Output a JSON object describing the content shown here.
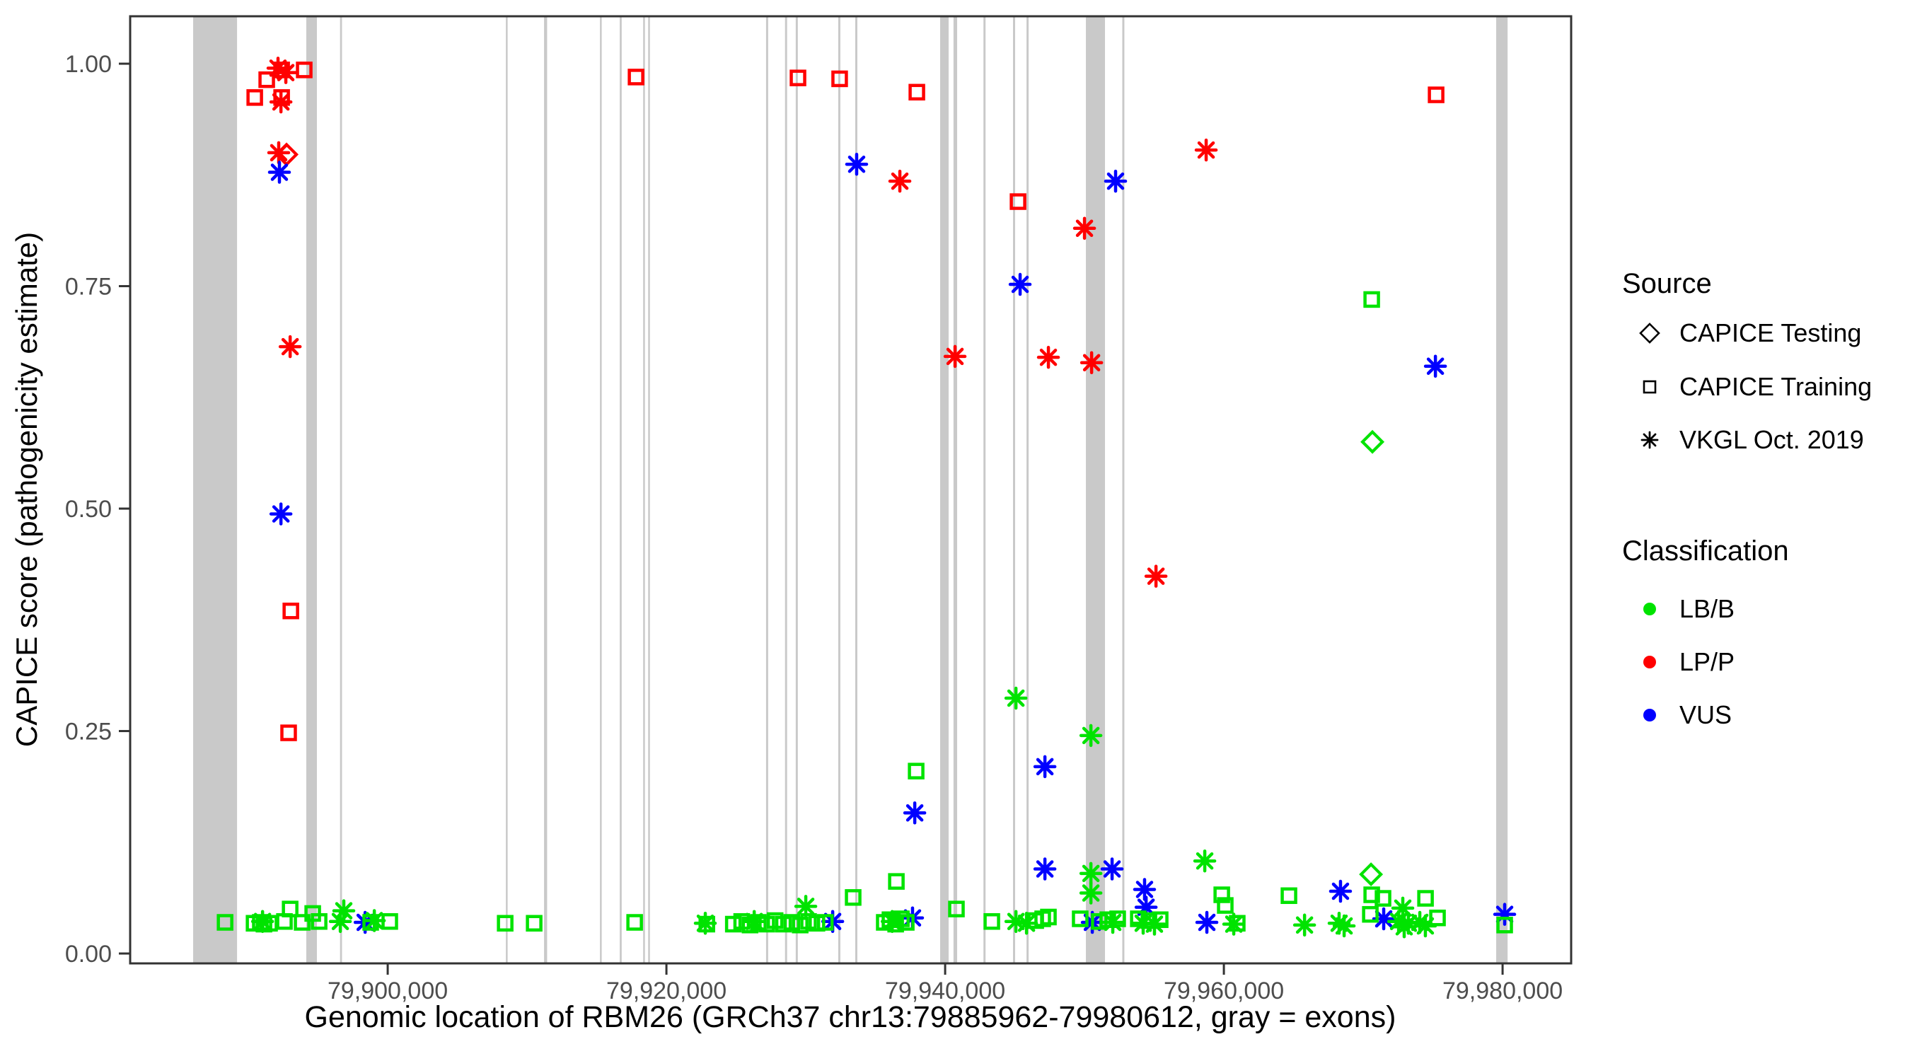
{
  "colors": {
    "lbb": "#00E300",
    "lpp": "#FF0000",
    "vus": "#0000FF",
    "exon": "#C9C9C9",
    "axis_text": "#4d4d4d",
    "panel_border": "#333333"
  },
  "legend": {
    "source_title": "Source",
    "source_items": [
      {
        "label": "CAPICE Testing",
        "shape": "diamond"
      },
      {
        "label": "CAPICE Training",
        "shape": "square"
      },
      {
        "label": "VKGL Oct. 2019",
        "shape": "asterisk"
      }
    ],
    "classification_title": "Classification",
    "classification_items": [
      {
        "label": "LB/B",
        "color_key": "lbb"
      },
      {
        "label": "LP/P",
        "color_key": "lpp"
      },
      {
        "label": "VUS",
        "color_key": "vus"
      }
    ]
  },
  "chart_data": {
    "type": "scatter",
    "title": "",
    "xlabel": "Genomic location of RBM26 (GRCh37 chr13:79885962-79980612, gray = exons)",
    "ylabel": "CAPICE score (pathogenicity estimate)",
    "x_ticks": [
      79900000,
      79920000,
      79940000,
      79960000,
      79980000
    ],
    "x_tick_labels": [
      "79,900,000",
      "79,920,000",
      "79,940,000",
      "79,960,000",
      "79,980,000"
    ],
    "y_ticks": [
      0.0,
      0.25,
      0.5,
      0.75,
      1.0
    ],
    "y_tick_labels": [
      "0.00",
      "0.25",
      "0.50",
      "0.75",
      "1.00"
    ],
    "x_range": [
      79881520,
      79984920
    ],
    "y_range": [
      -0.0111,
      1.0533
    ],
    "grid": false,
    "legend_position": "right",
    "exons_note": "gray vertical bands = exons, genomic start/end pairs",
    "exons": [
      [
        79886040,
        79889190
      ],
      [
        79894160,
        79894920
      ],
      [
        79896580,
        79896720
      ],
      [
        79908480,
        79908580
      ],
      [
        79911220,
        79911440
      ],
      [
        79915230,
        79915330
      ],
      [
        79916650,
        79916790
      ],
      [
        79918330,
        79918440
      ],
      [
        79918690,
        79918800
      ],
      [
        79927150,
        79927300
      ],
      [
        79928510,
        79928660
      ],
      [
        79929280,
        79929430
      ],
      [
        79932330,
        79932480
      ],
      [
        79933550,
        79933700
      ],
      [
        79939640,
        79940250
      ],
      [
        79940600,
        79940860
      ],
      [
        79942750,
        79942900
      ],
      [
        79944870,
        79945020
      ],
      [
        79945840,
        79945990
      ],
      [
        79950100,
        79951470
      ],
      [
        79952710,
        79952860
      ],
      [
        79979540,
        79980360
      ]
    ],
    "points_format": [
      "genomic_position",
      "capice_score",
      "shape(source: diamond=CAPICE Testing, square=CAPICE Training, asterisk=VKGL Oct. 2019)",
      "classification"
    ],
    "points": [
      [
        79890460,
        0.962,
        "square",
        "LP/P"
      ],
      [
        79891320,
        0.982,
        "square",
        "LP/P"
      ],
      [
        79892130,
        0.995,
        "asterisk",
        "LP/P"
      ],
      [
        79892690,
        0.99,
        "asterisk",
        "LP/P"
      ],
      [
        79892390,
        0.993,
        "square",
        "LP/P"
      ],
      [
        79894010,
        0.993,
        "square",
        "LP/P"
      ],
      [
        79892390,
        0.962,
        "square",
        "LP/P"
      ],
      [
        79892340,
        0.957,
        "asterisk",
        "LP/P"
      ],
      [
        79892180,
        0.9,
        "asterisk",
        "LP/P"
      ],
      [
        79892740,
        0.898,
        "diamond",
        "LP/P"
      ],
      [
        79893000,
        0.682,
        "asterisk",
        "LP/P"
      ],
      [
        79893050,
        0.385,
        "square",
        "LP/P"
      ],
      [
        79892890,
        0.248,
        "square",
        "LP/P"
      ],
      [
        79917820,
        0.985,
        "square",
        "LP/P"
      ],
      [
        79929440,
        0.984,
        "square",
        "LP/P"
      ],
      [
        79932430,
        0.983,
        "square",
        "LP/P"
      ],
      [
        79937970,
        0.968,
        "square",
        "LP/P"
      ],
      [
        79936750,
        0.868,
        "asterisk",
        "LP/P"
      ],
      [
        79940710,
        0.671,
        "asterisk",
        "LP/P"
      ],
      [
        79945230,
        0.845,
        "square",
        "LP/P"
      ],
      [
        79950000,
        0.815,
        "asterisk",
        "LP/P"
      ],
      [
        79947410,
        0.67,
        "asterisk",
        "LP/P"
      ],
      [
        79950510,
        0.664,
        "asterisk",
        "LP/P"
      ],
      [
        79958730,
        0.903,
        "asterisk",
        "LP/P"
      ],
      [
        79955130,
        0.424,
        "asterisk",
        "LP/P"
      ],
      [
        79975230,
        0.965,
        "square",
        "LP/P"
      ],
      [
        79892230,
        0.878,
        "asterisk",
        "VUS"
      ],
      [
        79892340,
        0.494,
        "asterisk",
        "VUS"
      ],
      [
        79933650,
        0.887,
        "asterisk",
        "VUS"
      ],
      [
        79937820,
        0.158,
        "asterisk",
        "VUS"
      ],
      [
        79945380,
        0.752,
        "asterisk",
        "VUS"
      ],
      [
        79952230,
        0.868,
        "asterisk",
        "VUS"
      ],
      [
        79947160,
        0.21,
        "asterisk",
        "VUS"
      ],
      [
        79947160,
        0.095,
        "asterisk",
        "VUS"
      ],
      [
        79951980,
        0.095,
        "asterisk",
        "VUS"
      ],
      [
        79954310,
        0.072,
        "asterisk",
        "VUS"
      ],
      [
        79954420,
        0.052,
        "asterisk",
        "VUS"
      ],
      [
        79975180,
        0.66,
        "asterisk",
        "VUS"
      ],
      [
        79968370,
        0.07,
        "asterisk",
        "VUS"
      ],
      [
        79971470,
        0.039,
        "asterisk",
        "VUS"
      ],
      [
        79980150,
        0.044,
        "asterisk",
        "VUS"
      ],
      [
        79937660,
        0.04,
        "asterisk",
        "VUS"
      ],
      [
        79950560,
        0.035,
        "asterisk",
        "VUS"
      ],
      [
        79931930,
        0.036,
        "asterisk",
        "VUS"
      ],
      [
        79898380,
        0.035,
        "asterisk",
        "VUS"
      ],
      [
        79958780,
        0.035,
        "asterisk",
        "VUS"
      ],
      [
        79888330,
        0.035,
        "square",
        "LB/B"
      ],
      [
        79890410,
        0.034,
        "square",
        "LB/B"
      ],
      [
        79890860,
        0.035,
        "square",
        "LB/B"
      ],
      [
        79891120,
        0.033,
        "square",
        "LB/B"
      ],
      [
        79891020,
        0.036,
        "asterisk",
        "LB/B"
      ],
      [
        79891520,
        0.034,
        "square",
        "LB/B"
      ],
      [
        79893000,
        0.05,
        "square",
        "LB/B"
      ],
      [
        79892590,
        0.036,
        "square",
        "LB/B"
      ],
      [
        79893860,
        0.035,
        "square",
        "LB/B"
      ],
      [
        79894620,
        0.045,
        "square",
        "LB/B"
      ],
      [
        79895080,
        0.036,
        "square",
        "LB/B"
      ],
      [
        79896850,
        0.048,
        "asterisk",
        "LB/B"
      ],
      [
        79896600,
        0.036,
        "asterisk",
        "LB/B"
      ],
      [
        79898780,
        0.035,
        "square",
        "LB/B"
      ],
      [
        79899040,
        0.037,
        "asterisk",
        "LB/B"
      ],
      [
        79900150,
        0.036,
        "square",
        "LB/B"
      ],
      [
        79908430,
        0.034,
        "square",
        "LB/B"
      ],
      [
        79910510,
        0.034,
        "square",
        "LB/B"
      ],
      [
        79917720,
        0.035,
        "square",
        "LB/B"
      ],
      [
        79922790,
        0.034,
        "asterisk",
        "LB/B"
      ],
      [
        79922900,
        0.033,
        "square",
        "LB/B"
      ],
      [
        79924800,
        0.033,
        "square",
        "LB/B"
      ],
      [
        79925400,
        0.036,
        "square",
        "LB/B"
      ],
      [
        79926000,
        0.032,
        "square",
        "LB/B"
      ],
      [
        79926300,
        0.036,
        "asterisk",
        "LB/B"
      ],
      [
        79926600,
        0.035,
        "square",
        "LB/B"
      ],
      [
        79927200,
        0.033,
        "square",
        "LB/B"
      ],
      [
        79927800,
        0.037,
        "square",
        "LB/B"
      ],
      [
        79928400,
        0.033,
        "square",
        "LB/B"
      ],
      [
        79929000,
        0.035,
        "square",
        "LB/B"
      ],
      [
        79929600,
        0.032,
        "square",
        "LB/B"
      ],
      [
        79930000,
        0.053,
        "asterisk",
        "LB/B"
      ],
      [
        79930200,
        0.036,
        "square",
        "LB/B"
      ],
      [
        79930800,
        0.034,
        "square",
        "LB/B"
      ],
      [
        79931400,
        0.035,
        "square",
        "LB/B"
      ],
      [
        79933400,
        0.063,
        "square",
        "LB/B"
      ],
      [
        79935630,
        0.035,
        "square",
        "LB/B"
      ],
      [
        79936040,
        0.038,
        "square",
        "LB/B"
      ],
      [
        79936450,
        0.033,
        "square",
        "LB/B"
      ],
      [
        79936860,
        0.039,
        "square",
        "LB/B"
      ],
      [
        79937210,
        0.035,
        "square",
        "LB/B"
      ],
      [
        79936200,
        0.036,
        "asterisk",
        "LB/B"
      ],
      [
        79936500,
        0.081,
        "square",
        "LB/B"
      ],
      [
        79937920,
        0.205,
        "square",
        "LB/B"
      ],
      [
        79945080,
        0.287,
        "asterisk",
        "LB/B"
      ],
      [
        79950460,
        0.245,
        "asterisk",
        "LB/B"
      ],
      [
        79940810,
        0.05,
        "square",
        "LB/B"
      ],
      [
        79943350,
        0.036,
        "square",
        "LB/B"
      ],
      [
        79945080,
        0.036,
        "asterisk",
        "LB/B"
      ],
      [
        79945840,
        0.034,
        "asterisk",
        "LB/B"
      ],
      [
        79946500,
        0.037,
        "square",
        "LB/B"
      ],
      [
        79947000,
        0.039,
        "square",
        "LB/B"
      ],
      [
        79947410,
        0.041,
        "square",
        "LB/B"
      ],
      [
        79950460,
        0.09,
        "asterisk",
        "LB/B"
      ],
      [
        79950460,
        0.068,
        "asterisk",
        "LB/B"
      ],
      [
        79949690,
        0.039,
        "square",
        "LB/B"
      ],
      [
        79951060,
        0.036,
        "square",
        "LB/B"
      ],
      [
        79951670,
        0.038,
        "square",
        "LB/B"
      ],
      [
        79952030,
        0.035,
        "asterisk",
        "LB/B"
      ],
      [
        79952380,
        0.039,
        "square",
        "LB/B"
      ],
      [
        79953860,
        0.039,
        "square",
        "LB/B"
      ],
      [
        79954210,
        0.034,
        "asterisk",
        "LB/B"
      ],
      [
        79954620,
        0.037,
        "square",
        "LB/B"
      ],
      [
        79955020,
        0.033,
        "asterisk",
        "LB/B"
      ],
      [
        79955430,
        0.038,
        "square",
        "LB/B"
      ],
      [
        79958630,
        0.104,
        "asterisk",
        "LB/B"
      ],
      [
        79959850,
        0.066,
        "square",
        "LB/B"
      ],
      [
        79960100,
        0.054,
        "square",
        "LB/B"
      ],
      [
        79960710,
        0.033,
        "asterisk",
        "LB/B"
      ],
      [
        79960960,
        0.034,
        "square",
        "LB/B"
      ],
      [
        79964670,
        0.065,
        "square",
        "LB/B"
      ],
      [
        79965790,
        0.032,
        "asterisk",
        "LB/B"
      ],
      [
        79968270,
        0.034,
        "asterisk",
        "LB/B"
      ],
      [
        79968630,
        0.031,
        "asterisk",
        "LB/B"
      ],
      [
        79970560,
        0.089,
        "diamond",
        "LB/B"
      ],
      [
        79970610,
        0.066,
        "square",
        "LB/B"
      ],
      [
        79971420,
        0.062,
        "square",
        "LB/B"
      ],
      [
        79970510,
        0.044,
        "square",
        "LB/B"
      ],
      [
        79972840,
        0.051,
        "asterisk",
        "LB/B"
      ],
      [
        79972540,
        0.036,
        "asterisk",
        "LB/B"
      ],
      [
        79972940,
        0.03,
        "asterisk",
        "LB/B"
      ],
      [
        79973240,
        0.034,
        "asterisk",
        "LB/B"
      ],
      [
        79974060,
        0.035,
        "asterisk",
        "LB/B"
      ],
      [
        79974460,
        0.031,
        "asterisk",
        "LB/B"
      ],
      [
        79974470,
        0.062,
        "square",
        "LB/B"
      ],
      [
        79975330,
        0.04,
        "square",
        "LB/B"
      ],
      [
        79970610,
        0.735,
        "square",
        "LB/B"
      ],
      [
        79970660,
        0.575,
        "diamond",
        "LB/B"
      ],
      [
        79980150,
        0.032,
        "square",
        "LB/B"
      ]
    ]
  }
}
